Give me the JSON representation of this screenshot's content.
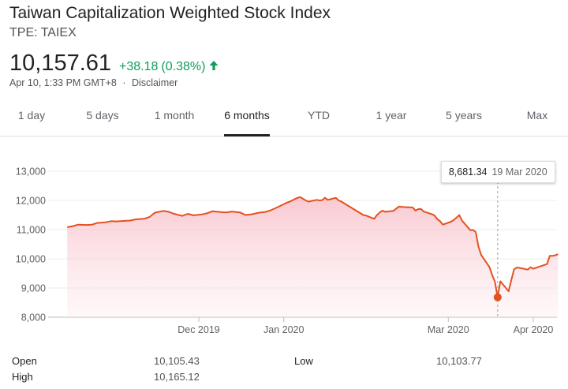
{
  "header": {
    "title": "Taiwan Capitalization Weighted Stock Index",
    "ticker": "TPE: TAIEX",
    "price": "10,157.61",
    "change": "+38.18",
    "change_pct": "(0.38%)",
    "timestamp": "Apr 10, 1:33 PM GMT+8",
    "separator": "·",
    "disclaimer": "Disclaimer",
    "up_color": "#0f9d58",
    "arrow_icon": "arrow-up-icon"
  },
  "tabs": [
    {
      "label": "1 day",
      "active": false
    },
    {
      "label": "5 days",
      "active": false
    },
    {
      "label": "1 month",
      "active": false
    },
    {
      "label": "6 months",
      "active": true
    },
    {
      "label": "YTD",
      "active": false
    },
    {
      "label": "1 year",
      "active": false
    },
    {
      "label": "5 years",
      "active": false
    },
    {
      "label": "Max",
      "active": false
    }
  ],
  "tooltip": {
    "value": "8,681.34",
    "date": "19 Mar 2020"
  },
  "chart_data": {
    "type": "area",
    "title": "",
    "xlabel": "",
    "ylabel": "",
    "ylim": [
      8000,
      13000
    ],
    "yticks": [
      8000,
      9000,
      10000,
      11000,
      12000,
      13000
    ],
    "ytick_labels": [
      "8,000",
      "9,000",
      "10,000",
      "11,000",
      "12,000",
      "13,000"
    ],
    "xticks": [
      {
        "label": "Dec 2019",
        "date": "2019-12-01"
      },
      {
        "label": "Jan 2020",
        "date": "2020-01-01"
      },
      {
        "label": "Mar 2020",
        "date": "2020-03-01"
      },
      {
        "label": "Apr 2020",
        "date": "2020-04-01"
      }
    ],
    "grid": true,
    "line_color": "#e5501f",
    "fill_color": "#fbd9de",
    "highlight": {
      "date": "2020-03-19",
      "value": 8681.34
    },
    "series": [
      {
        "points": [
          [
            "2019-10-14",
            11080
          ],
          [
            "2019-10-16",
            11120
          ],
          [
            "2019-10-18",
            11170
          ],
          [
            "2019-10-21",
            11160
          ],
          [
            "2019-10-23",
            11170
          ],
          [
            "2019-10-25",
            11230
          ],
          [
            "2019-10-28",
            11250
          ],
          [
            "2019-10-30",
            11290
          ],
          [
            "2019-11-01",
            11280
          ],
          [
            "2019-11-04",
            11300
          ],
          [
            "2019-11-06",
            11310
          ],
          [
            "2019-11-08",
            11350
          ],
          [
            "2019-11-11",
            11370
          ],
          [
            "2019-11-13",
            11430
          ],
          [
            "2019-11-15",
            11580
          ],
          [
            "2019-11-18",
            11640
          ],
          [
            "2019-11-20",
            11610
          ],
          [
            "2019-11-22",
            11540
          ],
          [
            "2019-11-25",
            11470
          ],
          [
            "2019-11-27",
            11540
          ],
          [
            "2019-11-29",
            11490
          ],
          [
            "2019-12-02",
            11520
          ],
          [
            "2019-12-04",
            11560
          ],
          [
            "2019-12-06",
            11630
          ],
          [
            "2019-12-09",
            11600
          ],
          [
            "2019-12-11",
            11590
          ],
          [
            "2019-12-13",
            11620
          ],
          [
            "2019-12-16",
            11590
          ],
          [
            "2019-12-18",
            11500
          ],
          [
            "2019-12-20",
            11520
          ],
          [
            "2019-12-23",
            11580
          ],
          [
            "2019-12-25",
            11600
          ],
          [
            "2019-12-27",
            11650
          ],
          [
            "2019-12-30",
            11780
          ],
          [
            "2020-01-02",
            11920
          ],
          [
            "2020-01-03",
            11950
          ],
          [
            "2020-01-06",
            12090
          ],
          [
            "2020-01-07",
            12110
          ],
          [
            "2020-01-09",
            12000
          ],
          [
            "2020-01-10",
            11960
          ],
          [
            "2020-01-13",
            12020
          ],
          [
            "2020-01-14",
            12000
          ],
          [
            "2020-01-15",
            12010
          ],
          [
            "2020-01-16",
            12090
          ],
          [
            "2020-01-17",
            12020
          ],
          [
            "2020-01-20",
            12090
          ],
          [
            "2020-01-21",
            12000
          ],
          [
            "2020-01-22",
            11960
          ],
          [
            "2020-01-30",
            11500
          ],
          [
            "2020-01-31",
            11480
          ],
          [
            "2020-02-03",
            11370
          ],
          [
            "2020-02-04",
            11500
          ],
          [
            "2020-02-05",
            11590
          ],
          [
            "2020-02-06",
            11650
          ],
          [
            "2020-02-07",
            11610
          ],
          [
            "2020-02-10",
            11640
          ],
          [
            "2020-02-11",
            11720
          ],
          [
            "2020-02-12",
            11790
          ],
          [
            "2020-02-13",
            11780
          ],
          [
            "2020-02-14",
            11770
          ],
          [
            "2020-02-17",
            11760
          ],
          [
            "2020-02-18",
            11650
          ],
          [
            "2020-02-19",
            11700
          ],
          [
            "2020-02-20",
            11710
          ],
          [
            "2020-02-21",
            11620
          ],
          [
            "2020-02-24",
            11530
          ],
          [
            "2020-02-25",
            11480
          ],
          [
            "2020-02-26",
            11360
          ],
          [
            "2020-02-27",
            11290
          ],
          [
            "2020-02-28",
            11170
          ],
          [
            "2020-03-02",
            11270
          ],
          [
            "2020-03-03",
            11330
          ],
          [
            "2020-03-04",
            11410
          ],
          [
            "2020-03-05",
            11500
          ],
          [
            "2020-03-06",
            11310
          ],
          [
            "2020-03-09",
            10980
          ],
          [
            "2020-03-10",
            10990
          ],
          [
            "2020-03-11",
            10920
          ],
          [
            "2020-03-12",
            10420
          ],
          [
            "2020-03-13",
            10130
          ],
          [
            "2020-03-16",
            9720
          ],
          [
            "2020-03-17",
            9440
          ],
          [
            "2020-03-18",
            9220
          ],
          [
            "2020-03-19",
            8681.34
          ],
          [
            "2020-03-20",
            9230
          ],
          [
            "2020-03-23",
            8890
          ],
          [
            "2020-03-24",
            9280
          ],
          [
            "2020-03-25",
            9640
          ],
          [
            "2020-03-26",
            9700
          ],
          [
            "2020-03-27",
            9690
          ],
          [
            "2020-03-30",
            9630
          ],
          [
            "2020-03-31",
            9710
          ],
          [
            "2020-04-01",
            9660
          ],
          [
            "2020-04-06",
            9820
          ],
          [
            "2020-04-07",
            10100
          ],
          [
            "2020-04-08",
            10100
          ],
          [
            "2020-04-09",
            10119.43
          ],
          [
            "2020-04-10",
            10157.61
          ]
        ]
      }
    ]
  },
  "stats": {
    "open_label": "Open",
    "open_value": "10,105.43",
    "high_label": "High",
    "high_value": "10,165.12",
    "low_label": "Low",
    "low_value": "10,103.77"
  }
}
